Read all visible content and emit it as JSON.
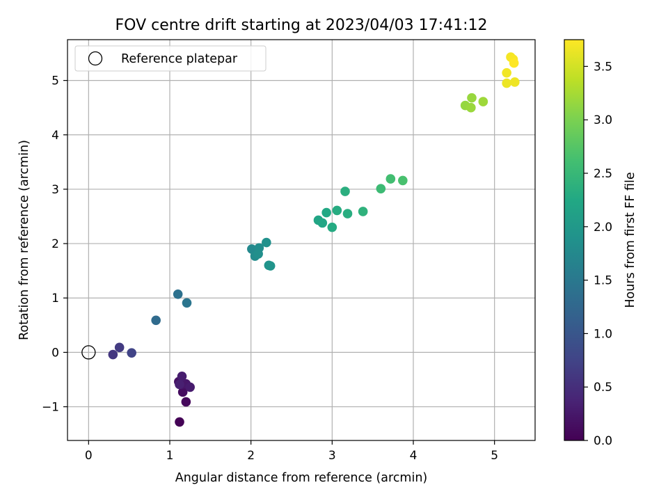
{
  "chart_data": {
    "type": "scatter",
    "title": "FOV centre drift starting at 2023/04/03 17:41:12",
    "xlabel": "Angular distance from reference (arcmin)",
    "ylabel": "Rotation from reference (arcmin)",
    "xlim": [
      -0.26,
      5.5
    ],
    "ylim": [
      -1.62,
      5.75
    ],
    "xticks": [
      0,
      1,
      2,
      3,
      4,
      5
    ],
    "yticks": [
      -1,
      0,
      1,
      2,
      3,
      4,
      5
    ],
    "ytick_labels": [
      "−1",
      "0",
      "1",
      "2",
      "3",
      "4",
      "5"
    ],
    "grid": true,
    "legend": {
      "location": "upper-left",
      "entries": [
        "Reference platepar"
      ]
    },
    "reference_point": {
      "x": 0,
      "y": 0,
      "label": "Reference platepar"
    },
    "colorbar": {
      "label": "Hours from first FF file",
      "colormap": "viridis",
      "range": [
        0.0,
        3.75
      ],
      "ticks": [
        0.0,
        0.5,
        1.0,
        1.5,
        2.0,
        2.5,
        3.0,
        3.5
      ],
      "tick_labels": [
        "0.0",
        "0.5",
        "1.0",
        "1.5",
        "2.0",
        "2.5",
        "3.0",
        "3.5"
      ]
    },
    "points": [
      {
        "x": 1.12,
        "y": -1.28,
        "hours": 0.02
      },
      {
        "x": 1.2,
        "y": -0.91,
        "hours": 0.08
      },
      {
        "x": 1.16,
        "y": -0.73,
        "hours": 0.12
      },
      {
        "x": 1.11,
        "y": -0.54,
        "hours": 0.17
      },
      {
        "x": 1.15,
        "y": -0.59,
        "hours": 0.2
      },
      {
        "x": 1.2,
        "y": -0.58,
        "hours": 0.24
      },
      {
        "x": 1.25,
        "y": -0.64,
        "hours": 0.28
      },
      {
        "x": 1.15,
        "y": -0.44,
        "hours": 0.3
      },
      {
        "x": 1.12,
        "y": -0.59,
        "hours": 0.33
      },
      {
        "x": 0.3,
        "y": -0.04,
        "hours": 0.6
      },
      {
        "x": 0.38,
        "y": 0.09,
        "hours": 0.65
      },
      {
        "x": 0.53,
        "y": -0.01,
        "hours": 0.75
      },
      {
        "x": 0.83,
        "y": 0.59,
        "hours": 1.3
      },
      {
        "x": 1.1,
        "y": 1.07,
        "hours": 1.4
      },
      {
        "x": 1.21,
        "y": 0.91,
        "hours": 1.45
      },
      {
        "x": 2.01,
        "y": 1.9,
        "hours": 1.75
      },
      {
        "x": 2.05,
        "y": 1.77,
        "hours": 1.8
      },
      {
        "x": 2.1,
        "y": 1.92,
        "hours": 1.82
      },
      {
        "x": 2.09,
        "y": 1.81,
        "hours": 1.85
      },
      {
        "x": 2.19,
        "y": 2.02,
        "hours": 1.88
      },
      {
        "x": 2.22,
        "y": 1.6,
        "hours": 1.9
      },
      {
        "x": 2.24,
        "y": 1.59,
        "hours": 1.93
      },
      {
        "x": 2.83,
        "y": 2.43,
        "hours": 2.2
      },
      {
        "x": 2.88,
        "y": 2.38,
        "hours": 2.22
      },
      {
        "x": 2.93,
        "y": 2.57,
        "hours": 2.25
      },
      {
        "x": 3.0,
        "y": 2.3,
        "hours": 2.28
      },
      {
        "x": 3.06,
        "y": 2.61,
        "hours": 2.3
      },
      {
        "x": 3.16,
        "y": 2.96,
        "hours": 2.35
      },
      {
        "x": 3.19,
        "y": 2.55,
        "hours": 2.33
      },
      {
        "x": 3.38,
        "y": 2.59,
        "hours": 2.4
      },
      {
        "x": 3.6,
        "y": 3.01,
        "hours": 2.55
      },
      {
        "x": 3.72,
        "y": 3.19,
        "hours": 2.6
      },
      {
        "x": 3.87,
        "y": 3.16,
        "hours": 2.65
      },
      {
        "x": 4.64,
        "y": 4.54,
        "hours": 3.15
      },
      {
        "x": 4.71,
        "y": 4.5,
        "hours": 3.18
      },
      {
        "x": 4.72,
        "y": 4.68,
        "hours": 3.17
      },
      {
        "x": 4.86,
        "y": 4.61,
        "hours": 3.2
      },
      {
        "x": 5.15,
        "y": 4.95,
        "hours": 3.65
      },
      {
        "x": 5.15,
        "y": 5.14,
        "hours": 3.68
      },
      {
        "x": 5.25,
        "y": 4.97,
        "hours": 3.66
      },
      {
        "x": 5.2,
        "y": 5.43,
        "hours": 3.7
      },
      {
        "x": 5.23,
        "y": 5.39,
        "hours": 3.72
      },
      {
        "x": 5.24,
        "y": 5.32,
        "hours": 3.75
      }
    ]
  }
}
